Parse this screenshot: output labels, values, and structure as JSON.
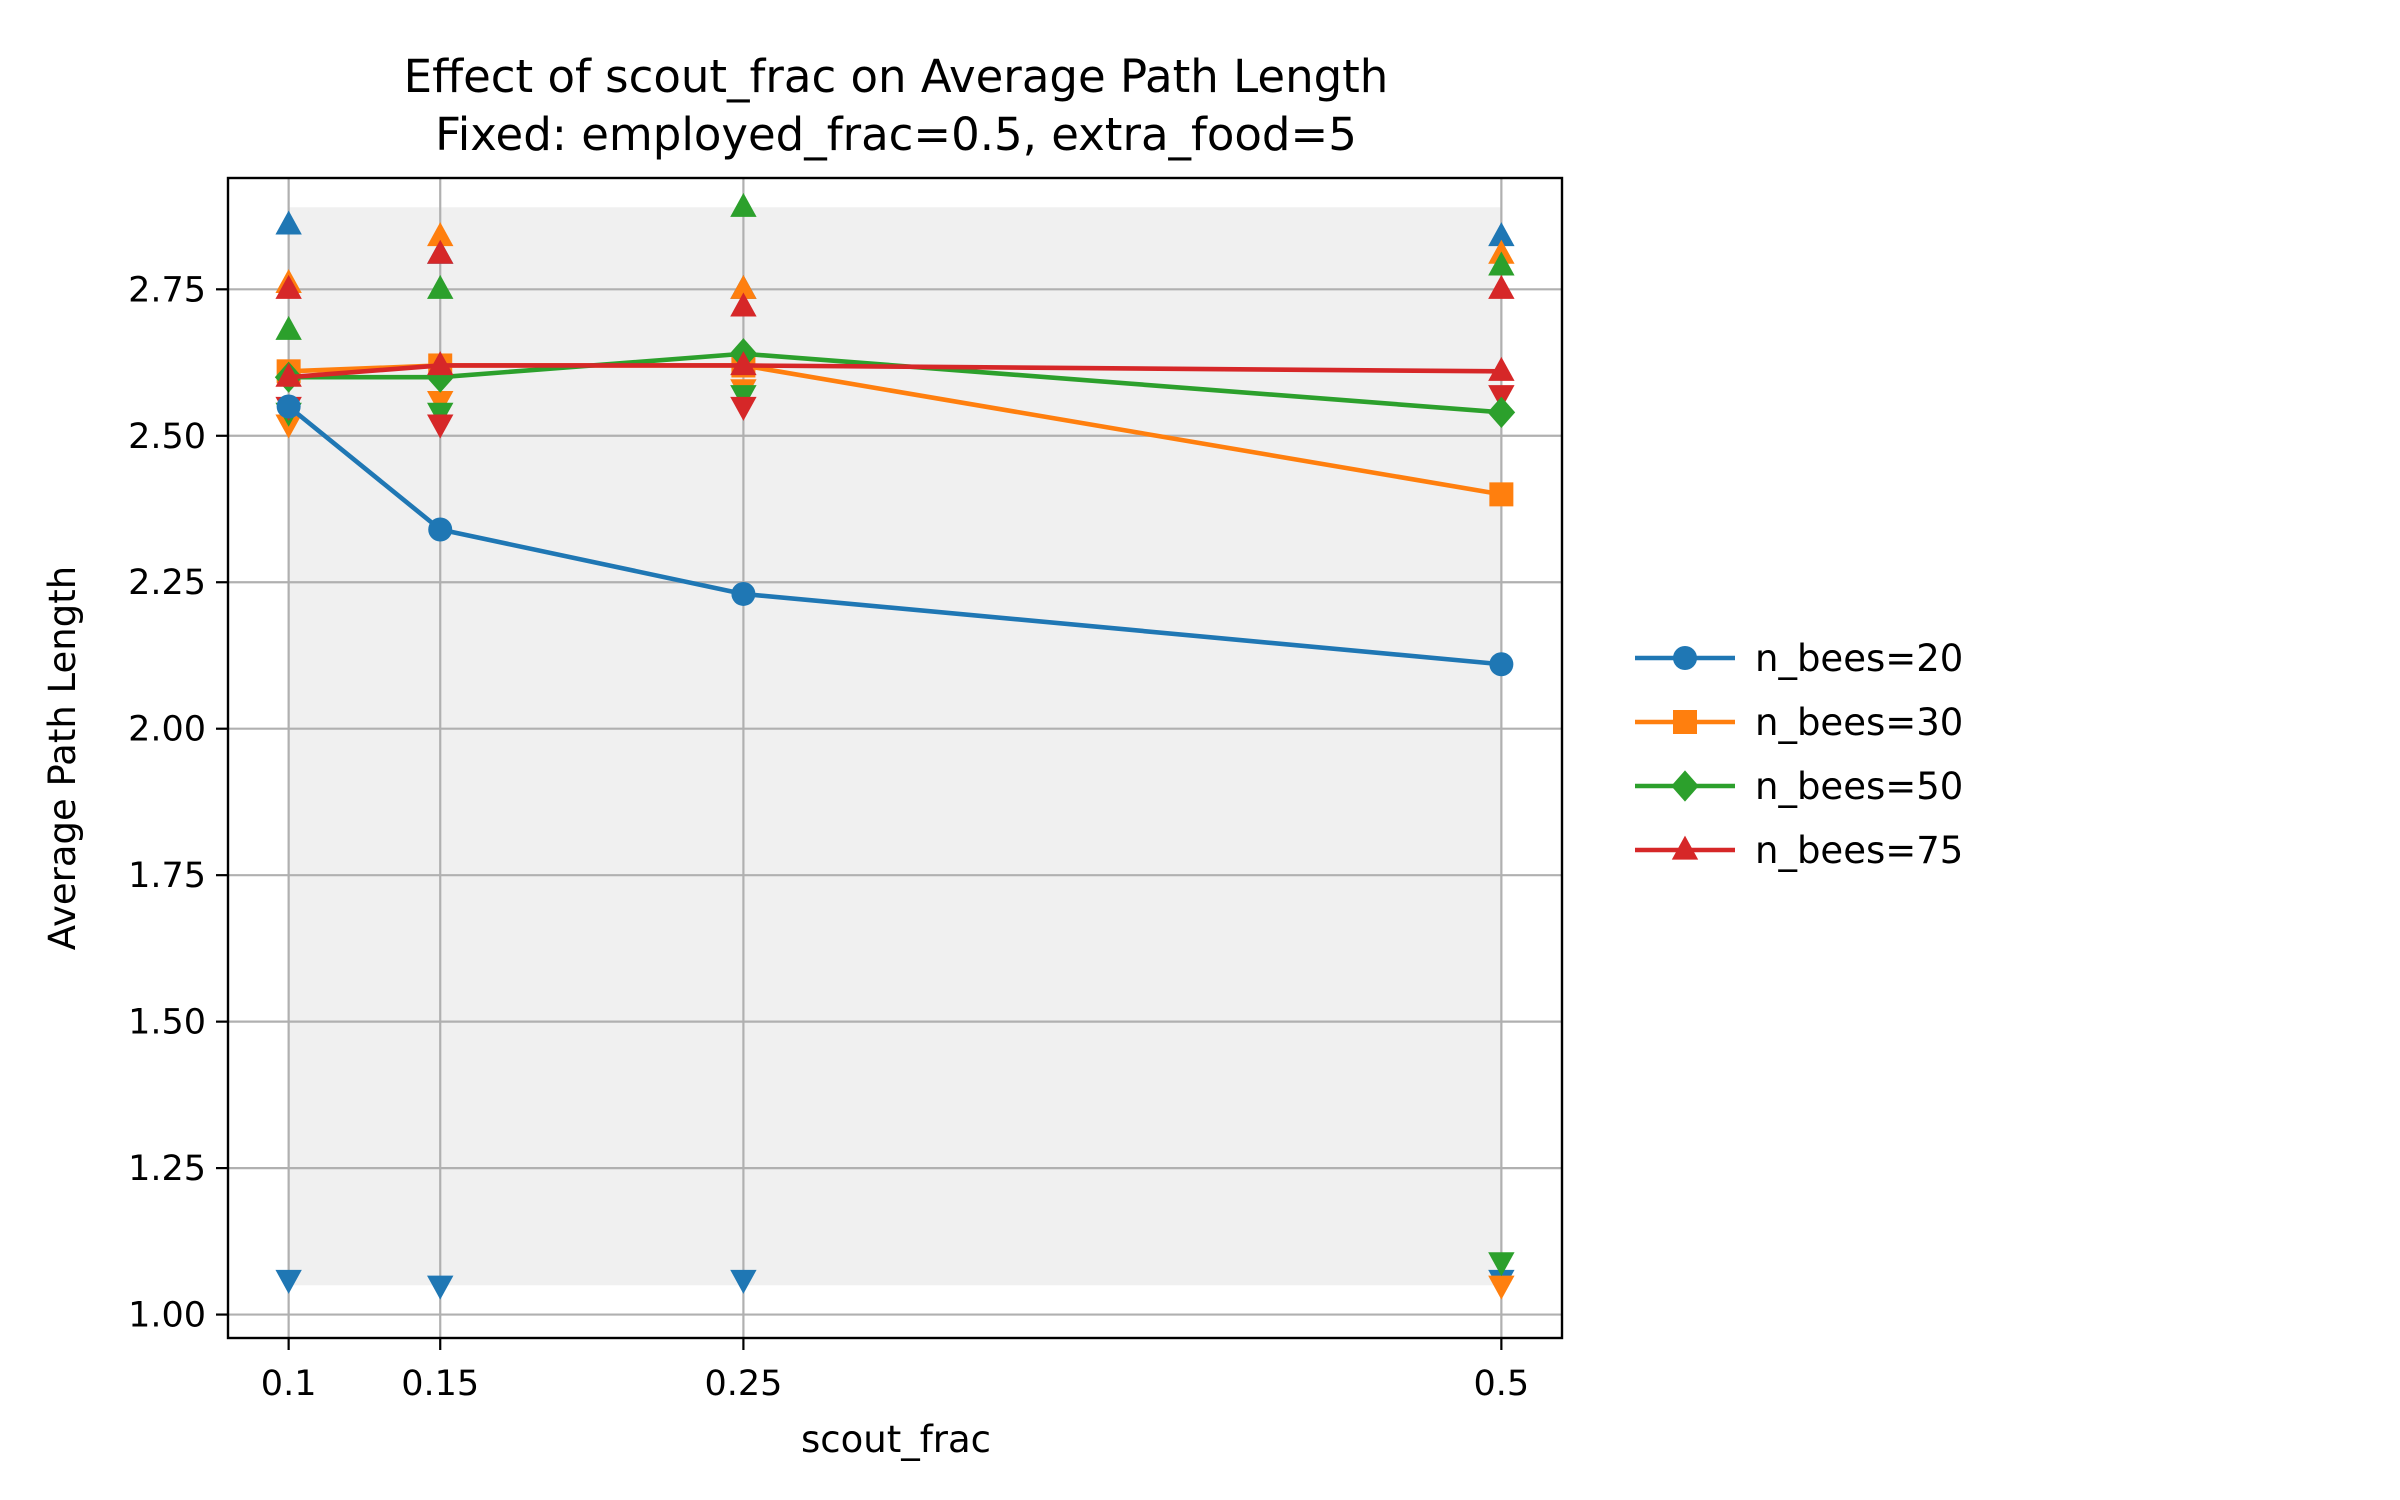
{
  "chart_data": {
    "type": "line",
    "title": "Effect of scout_frac on Average Path Length",
    "subtitle": "Fixed: employed_frac=0.5, extra_food=5",
    "xlabel": "scout_frac",
    "ylabel": "Average Path Length",
    "x": [
      0.1,
      0.15,
      0.25,
      0.5
    ],
    "x_tick_labels": [
      "0.1",
      "0.15",
      "0.25",
      "0.5"
    ],
    "y_ticks": [
      1.0,
      1.25,
      1.5,
      1.75,
      2.0,
      2.25,
      2.5,
      2.75
    ],
    "y_tick_labels": [
      "1.00",
      "1.25",
      "1.50",
      "1.75",
      "2.00",
      "2.25",
      "2.50",
      "2.75"
    ],
    "xlim": [
      0.08,
      0.52
    ],
    "ylim": [
      0.96,
      2.94
    ],
    "grid": true,
    "legend_position": "right, outside plot",
    "shaded_band": {
      "y_range": [
        1.05,
        2.89
      ],
      "color": "#f0f0f0"
    },
    "series": [
      {
        "name": "n_bees=20",
        "color": "#1f77b4",
        "marker": "circle",
        "values": [
          2.55,
          2.34,
          2.23,
          2.11
        ],
        "max": [
          2.86,
          2.81,
          2.75,
          2.84
        ],
        "min": [
          1.06,
          1.05,
          1.06,
          1.06
        ]
      },
      {
        "name": "n_bees=30",
        "color": "#ff7f0e",
        "marker": "square",
        "values": [
          2.61,
          2.62,
          2.62,
          2.4
        ],
        "max": [
          2.76,
          2.84,
          2.75,
          2.81
        ],
        "min": [
          2.52,
          2.56,
          2.58,
          1.05
        ]
      },
      {
        "name": "n_bees=50",
        "color": "#2ca02c",
        "marker": "diamond",
        "values": [
          2.6,
          2.6,
          2.64,
          2.54
        ],
        "max": [
          2.68,
          2.75,
          2.89,
          2.79
        ],
        "min": [
          2.54,
          2.54,
          2.57,
          1.09
        ]
      },
      {
        "name": "n_bees=75",
        "color": "#d62728",
        "marker": "triangle",
        "values": [
          2.6,
          2.62,
          2.62,
          2.61
        ],
        "max": [
          2.75,
          2.81,
          2.72,
          2.75
        ],
        "min": [
          2.55,
          2.52,
          2.55,
          2.57
        ]
      }
    ]
  }
}
